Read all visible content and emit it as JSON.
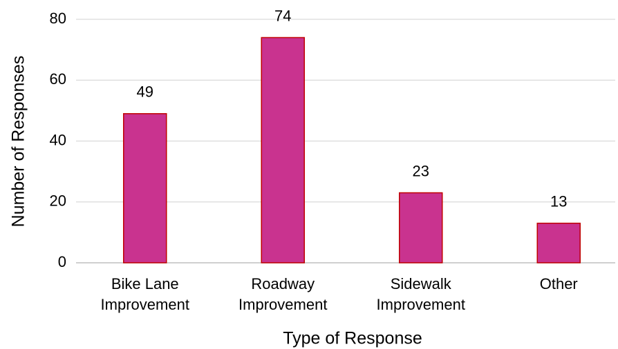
{
  "chart_data": {
    "type": "bar",
    "x_label": "Type of Response",
    "y_label": "Number of Responses",
    "categories": [
      "Bike Lane Improvement",
      "Roadway Improvement",
      "Sidewalk Improvement",
      "Other"
    ],
    "values": [
      49,
      74,
      23,
      13
    ],
    "color": "#c9338f",
    "edge_color": "#c00000",
    "ylim": [
      0,
      80
    ],
    "yticks": [
      0,
      20,
      40,
      60,
      80
    ],
    "grid": true
  }
}
